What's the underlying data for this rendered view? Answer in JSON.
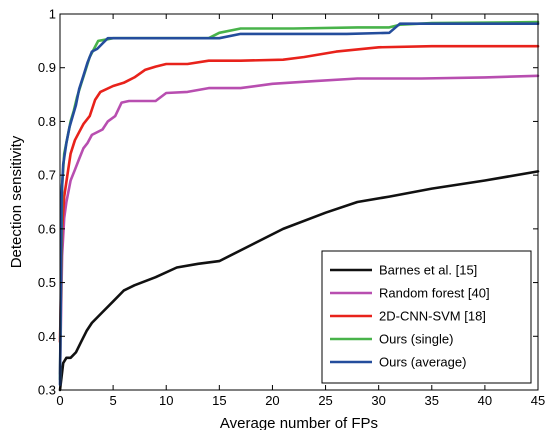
{
  "chart_data": {
    "type": "line",
    "title": "",
    "xlabel": "Average number of FPs",
    "ylabel": "Detection sensitivity",
    "xlim": [
      0,
      45
    ],
    "ylim": [
      0.3,
      1
    ],
    "xticks": [
      0,
      5,
      10,
      15,
      20,
      25,
      30,
      35,
      40,
      45
    ],
    "yticks": [
      0.3,
      0.4,
      0.5,
      0.6,
      0.7,
      0.8,
      0.9,
      1
    ],
    "xtick_labels": [
      "0",
      "5",
      "10",
      "15",
      "20",
      "25",
      "30",
      "35",
      "40",
      "45"
    ],
    "ytick_labels": [
      "0.3",
      "0.4",
      "0.5",
      "0.6",
      "0.7",
      "0.8",
      "0.9",
      "1"
    ],
    "grid": false,
    "legend_position": "lower-right",
    "series": [
      {
        "name": "Barnes et al. [15]",
        "color": "#111111",
        "points": [
          [
            0,
            0.3
          ],
          [
            0.3,
            0.35
          ],
          [
            0.6,
            0.36
          ],
          [
            1.0,
            0.36
          ],
          [
            1.5,
            0.37
          ],
          [
            2.0,
            0.39
          ],
          [
            2.5,
            0.41
          ],
          [
            3.0,
            0.425
          ],
          [
            4.0,
            0.445
          ],
          [
            5.0,
            0.465
          ],
          [
            6.0,
            0.485
          ],
          [
            7.0,
            0.495
          ],
          [
            9.0,
            0.51
          ],
          [
            11.0,
            0.528
          ],
          [
            13.0,
            0.535
          ],
          [
            15.0,
            0.54
          ],
          [
            18.0,
            0.57
          ],
          [
            21.0,
            0.6
          ],
          [
            25.0,
            0.63
          ],
          [
            28.0,
            0.65
          ],
          [
            31.0,
            0.66
          ],
          [
            35.0,
            0.675
          ],
          [
            40.0,
            0.69
          ],
          [
            45.0,
            0.707
          ]
        ]
      },
      {
        "name": "Random forest [40]",
        "color": "#b84eb0",
        "points": [
          [
            0,
            0.33
          ],
          [
            0.2,
            0.55
          ],
          [
            0.4,
            0.62
          ],
          [
            0.6,
            0.65
          ],
          [
            0.8,
            0.67
          ],
          [
            1.0,
            0.69
          ],
          [
            1.4,
            0.71
          ],
          [
            1.8,
            0.73
          ],
          [
            2.2,
            0.75
          ],
          [
            2.6,
            0.76
          ],
          [
            3.0,
            0.775
          ],
          [
            4.0,
            0.785
          ],
          [
            4.5,
            0.8
          ],
          [
            5.2,
            0.81
          ],
          [
            5.8,
            0.835
          ],
          [
            6.5,
            0.838
          ],
          [
            9.0,
            0.838
          ],
          [
            10.0,
            0.853
          ],
          [
            12.0,
            0.855
          ],
          [
            14.0,
            0.862
          ],
          [
            17.0,
            0.862
          ],
          [
            20.0,
            0.87
          ],
          [
            24.0,
            0.875
          ],
          [
            28.0,
            0.88
          ],
          [
            34.0,
            0.88
          ],
          [
            40.0,
            0.882
          ],
          [
            45.0,
            0.885
          ]
        ]
      },
      {
        "name": "2D-CNN-SVM [18]",
        "color": "#e8221b",
        "points": [
          [
            0,
            0.39
          ],
          [
            0.2,
            0.6
          ],
          [
            0.4,
            0.66
          ],
          [
            0.7,
            0.7
          ],
          [
            1.0,
            0.74
          ],
          [
            1.4,
            0.765
          ],
          [
            1.8,
            0.78
          ],
          [
            2.2,
            0.795
          ],
          [
            2.8,
            0.81
          ],
          [
            3.3,
            0.84
          ],
          [
            3.8,
            0.855
          ],
          [
            5.0,
            0.866
          ],
          [
            6.0,
            0.872
          ],
          [
            7.0,
            0.882
          ],
          [
            8.0,
            0.896
          ],
          [
            9.0,
            0.902
          ],
          [
            10.0,
            0.907
          ],
          [
            12.0,
            0.907
          ],
          [
            14.0,
            0.913
          ],
          [
            17.0,
            0.913
          ],
          [
            21.0,
            0.915
          ],
          [
            23.0,
            0.92
          ],
          [
            26.0,
            0.93
          ],
          [
            30.0,
            0.938
          ],
          [
            35.0,
            0.94
          ],
          [
            45.0,
            0.94
          ]
        ]
      },
      {
        "name": "Ours (single)",
        "color": "#48b34a",
        "points": [
          [
            0,
            0.32
          ],
          [
            0.2,
            0.68
          ],
          [
            0.4,
            0.74
          ],
          [
            0.7,
            0.77
          ],
          [
            1.0,
            0.8
          ],
          [
            1.3,
            0.82
          ],
          [
            1.6,
            0.845
          ],
          [
            2.0,
            0.87
          ],
          [
            2.4,
            0.895
          ],
          [
            2.8,
            0.92
          ],
          [
            3.2,
            0.935
          ],
          [
            3.6,
            0.95
          ],
          [
            4.2,
            0.952
          ],
          [
            5.0,
            0.955
          ],
          [
            10.0,
            0.955
          ],
          [
            14.0,
            0.955
          ],
          [
            15.0,
            0.965
          ],
          [
            17.0,
            0.973
          ],
          [
            22.0,
            0.973
          ],
          [
            28.0,
            0.975
          ],
          [
            31.0,
            0.975
          ],
          [
            32.0,
            0.98
          ],
          [
            35.0,
            0.983
          ],
          [
            45.0,
            0.985
          ]
        ]
      },
      {
        "name": "Ours (average)",
        "color": "#244d9c",
        "points": [
          [
            0,
            0.31
          ],
          [
            0.15,
            0.66
          ],
          [
            0.3,
            0.72
          ],
          [
            0.6,
            0.76
          ],
          [
            0.9,
            0.79
          ],
          [
            1.2,
            0.81
          ],
          [
            1.5,
            0.83
          ],
          [
            1.8,
            0.86
          ],
          [
            2.2,
            0.885
          ],
          [
            2.6,
            0.91
          ],
          [
            3.0,
            0.93
          ],
          [
            3.5,
            0.935
          ],
          [
            4.0,
            0.945
          ],
          [
            4.5,
            0.955
          ],
          [
            6.0,
            0.955
          ],
          [
            10.0,
            0.955
          ],
          [
            15.0,
            0.955
          ],
          [
            17.0,
            0.963
          ],
          [
            22.0,
            0.963
          ],
          [
            27.0,
            0.963
          ],
          [
            31.0,
            0.965
          ],
          [
            32.0,
            0.982
          ],
          [
            38.0,
            0.982
          ],
          [
            45.0,
            0.982
          ]
        ]
      }
    ]
  }
}
